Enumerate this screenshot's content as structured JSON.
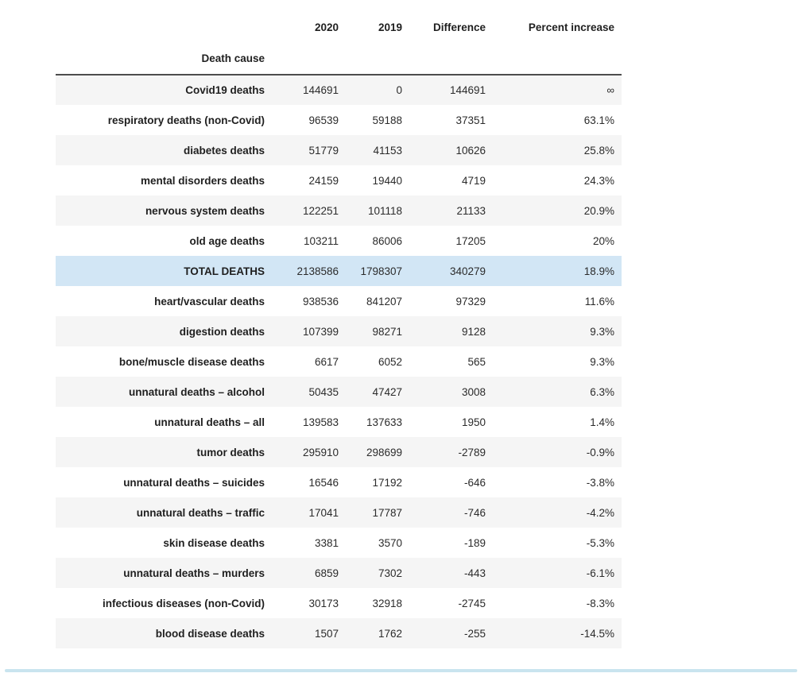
{
  "chart_data": {
    "type": "table",
    "title": "",
    "index_name": "Death cause",
    "columns": [
      "2020",
      "2019",
      "Difference",
      "Percent increase"
    ],
    "rows": [
      {
        "label": "Covid19 deaths",
        "values": [
          "144691",
          "0",
          "144691",
          "∞"
        ],
        "highlight": false
      },
      {
        "label": "respiratory deaths (non-Covid)",
        "values": [
          "96539",
          "59188",
          "37351",
          "63.1%"
        ],
        "highlight": false
      },
      {
        "label": "diabetes deaths",
        "values": [
          "51779",
          "41153",
          "10626",
          "25.8%"
        ],
        "highlight": false
      },
      {
        "label": "mental disorders deaths",
        "values": [
          "24159",
          "19440",
          "4719",
          "24.3%"
        ],
        "highlight": false
      },
      {
        "label": "nervous system deaths",
        "values": [
          "122251",
          "101118",
          "21133",
          "20.9%"
        ],
        "highlight": false
      },
      {
        "label": "old age deaths",
        "values": [
          "103211",
          "86006",
          "17205",
          "20%"
        ],
        "highlight": false
      },
      {
        "label": "TOTAL DEATHS",
        "values": [
          "2138586",
          "1798307",
          "340279",
          "18.9%"
        ],
        "highlight": true
      },
      {
        "label": "heart/vascular deaths",
        "values": [
          "938536",
          "841207",
          "97329",
          "11.6%"
        ],
        "highlight": false
      },
      {
        "label": "digestion deaths",
        "values": [
          "107399",
          "98271",
          "9128",
          "9.3%"
        ],
        "highlight": false
      },
      {
        "label": "bone/muscle disease deaths",
        "values": [
          "6617",
          "6052",
          "565",
          "9.3%"
        ],
        "highlight": false
      },
      {
        "label": "unnatural deaths – alcohol",
        "values": [
          "50435",
          "47427",
          "3008",
          "6.3%"
        ],
        "highlight": false
      },
      {
        "label": "unnatural deaths – all",
        "values": [
          "139583",
          "137633",
          "1950",
          "1.4%"
        ],
        "highlight": false
      },
      {
        "label": "tumor deaths",
        "values": [
          "295910",
          "298699",
          "-2789",
          "-0.9%"
        ],
        "highlight": false
      },
      {
        "label": "unnatural deaths – suicides",
        "values": [
          "16546",
          "17192",
          "-646",
          "-3.8%"
        ],
        "highlight": false
      },
      {
        "label": "unnatural deaths – traffic",
        "values": [
          "17041",
          "17787",
          "-746",
          "-4.2%"
        ],
        "highlight": false
      },
      {
        "label": "skin disease deaths",
        "values": [
          "3381",
          "3570",
          "-189",
          "-5.3%"
        ],
        "highlight": false
      },
      {
        "label": "unnatural deaths – murders",
        "values": [
          "6859",
          "7302",
          "-443",
          "-6.1%"
        ],
        "highlight": false
      },
      {
        "label": "infectious diseases (non-Covid)",
        "values": [
          "30173",
          "32918",
          "-2745",
          "-8.3%"
        ],
        "highlight": false
      },
      {
        "label": "blood disease deaths",
        "values": [
          "1507",
          "1762",
          "-255",
          "-14.5%"
        ],
        "highlight": false
      }
    ],
    "layout_hints": {
      "striped_rows": true,
      "highlighted_row_label": "TOTAL DEATHS",
      "sort_order": "Percent increase descending"
    }
  },
  "colors": {
    "stripe": "#f5f5f5",
    "highlight": "#d2e6f5",
    "header_border": "#4d4d4d",
    "divider": "#c9e4ef"
  }
}
